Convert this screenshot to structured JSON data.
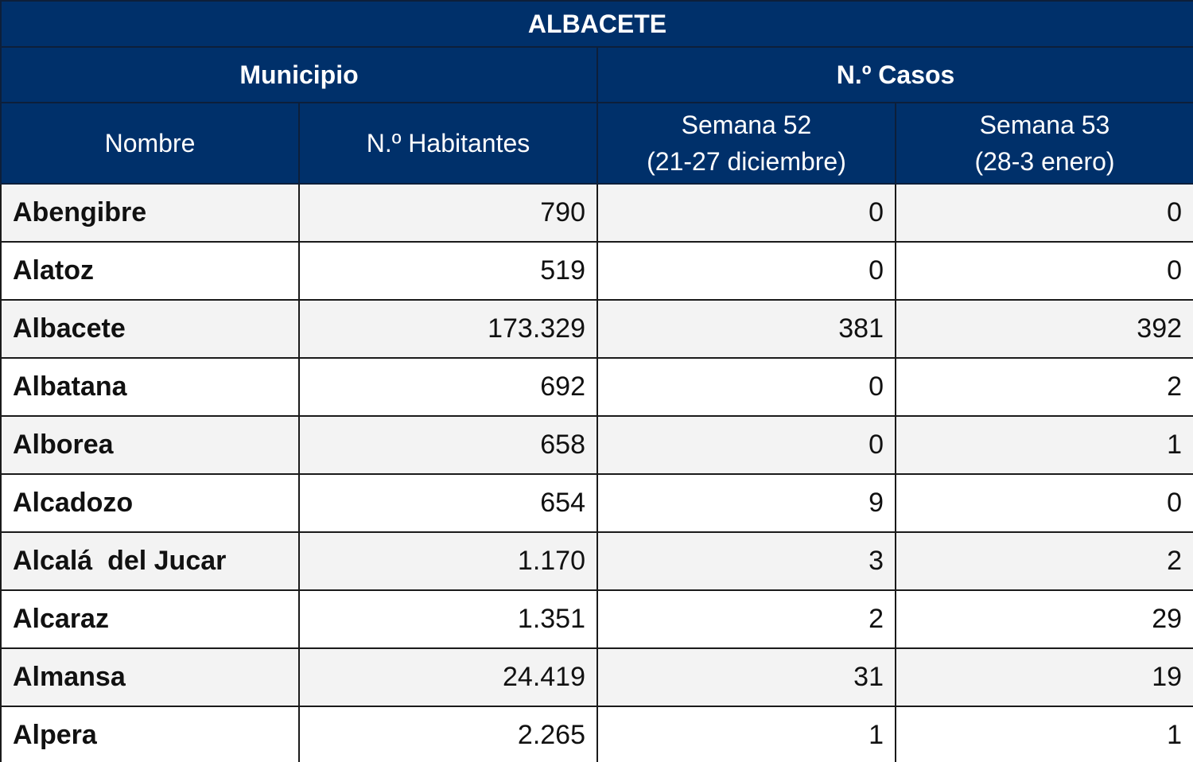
{
  "title": "ALBACETE",
  "groups": {
    "municipio": "Municipio",
    "casos": "N.º Casos"
  },
  "columns": {
    "nombre": "Nombre",
    "habitantes": "N.º Habitantes",
    "semana52": {
      "line1": "Semana 52",
      "line2": "(21-27 diciembre)"
    },
    "semana53": {
      "line1": "Semana 53",
      "line2": "(28-3 enero)"
    }
  },
  "rows": [
    {
      "nombre": "Abengibre",
      "habitantes": "790",
      "semana52": "0",
      "semana53": "0"
    },
    {
      "nombre": "Alatoz",
      "habitantes": "519",
      "semana52": "0",
      "semana53": "0"
    },
    {
      "nombre": "Albacete",
      "habitantes": "173.329",
      "semana52": "381",
      "semana53": "392"
    },
    {
      "nombre": "Albatana",
      "habitantes": "692",
      "semana52": "0",
      "semana53": "2"
    },
    {
      "nombre": "Alborea",
      "habitantes": "658",
      "semana52": "0",
      "semana53": "1"
    },
    {
      "nombre": "Alcadozo",
      "habitantes": "654",
      "semana52": "9",
      "semana53": "0"
    },
    {
      "nombre": "Alcalá  del Jucar",
      "habitantes": "1.170",
      "semana52": "3",
      "semana53": "2"
    },
    {
      "nombre": "Alcaraz",
      "habitantes": "1.351",
      "semana52": "2",
      "semana53": "29"
    },
    {
      "nombre": "Almansa",
      "habitantes": "24.419",
      "semana52": "31",
      "semana53": "19"
    },
    {
      "nombre": "Alpera",
      "habitantes": "2.265",
      "semana52": "1",
      "semana53": "1"
    }
  ],
  "colors": {
    "header_bg": "#00306a",
    "header_text": "#ffffff",
    "row_alt_bg": "#f3f3f3",
    "row_bg": "#ffffff"
  }
}
